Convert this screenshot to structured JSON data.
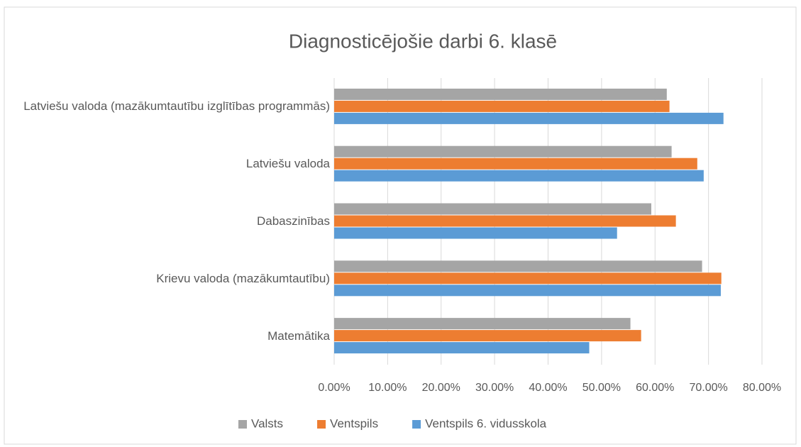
{
  "chart_data": {
    "type": "bar",
    "orientation": "horizontal",
    "title": "Diagnosticējošie darbi 6. klasē",
    "categories": [
      "Latviešu valoda (mazākumtautību izglītības programmās)",
      "Latviešu valoda",
      "Dabaszinības",
      "Krievu valoda (mazākumtautību)",
      "Matemātika"
    ],
    "series": [
      {
        "name": "Valsts",
        "color": "#a5a5a5",
        "values": [
          62.2,
          63.1,
          59.3,
          68.8,
          55.4
        ]
      },
      {
        "name": "Ventspils",
        "color": "#ed7d31",
        "values": [
          62.7,
          67.9,
          63.9,
          72.4,
          57.4
        ]
      },
      {
        "name": "Ventspils 6. vidusskola",
        "color": "#5b9bd5",
        "values": [
          72.8,
          69.1,
          52.9,
          72.3,
          47.7
        ]
      }
    ],
    "xlim": [
      0,
      80
    ],
    "xticks": [
      {
        "value": 0,
        "label": "0.00%"
      },
      {
        "value": 10,
        "label": "10.00%"
      },
      {
        "value": 20,
        "label": "20.00%"
      },
      {
        "value": 30,
        "label": "30.00%"
      },
      {
        "value": 40,
        "label": "40.00%"
      },
      {
        "value": 50,
        "label": "50.00%"
      },
      {
        "value": 60,
        "label": "60.00%"
      },
      {
        "value": 70,
        "label": "70.00%"
      },
      {
        "value": 80,
        "label": "80.00%"
      }
    ],
    "grid": true,
    "legend": "bottom"
  }
}
